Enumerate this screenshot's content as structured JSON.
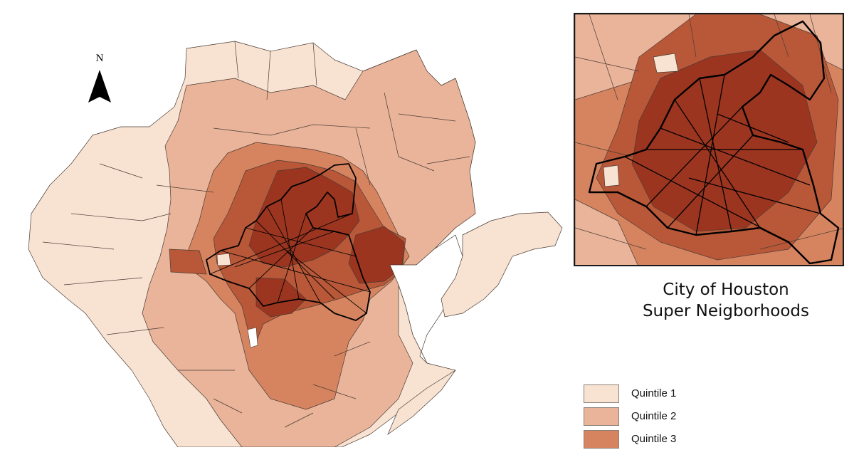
{
  "north_arrow": {
    "letter": "N",
    "icon": "north-arrow-icon"
  },
  "inset": {
    "title_line1": "City of Houston",
    "title_line2": "Super Neigborhoods"
  },
  "legend": {
    "items": [
      {
        "label": "Quintile 1",
        "color": "#f8e3d3"
      },
      {
        "label": "Quintile 2",
        "color": "#e9b49a"
      },
      {
        "label": "Quintile 3",
        "color": "#d68460"
      }
    ]
  },
  "colors": {
    "quintile_1": "#f8e3d3",
    "quintile_2": "#e9b49a",
    "quintile_3": "#d68460",
    "quintile_4": "#b95839",
    "quintile_5": "#9c3520",
    "boundary": "#4a3b33",
    "city_outline": "#000000"
  }
}
